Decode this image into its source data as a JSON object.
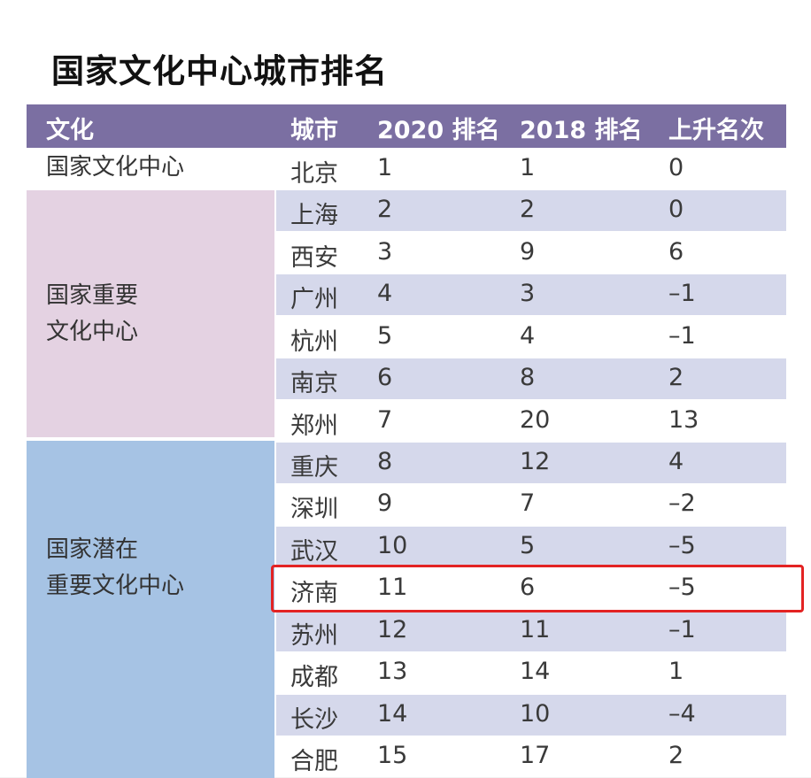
{
  "title": "国家文化中心城市排名",
  "headers": {
    "culture": "文化",
    "city": "城市",
    "rank2020": "2020 排名",
    "rank2018": "2018 排名",
    "rise": "上升名次"
  },
  "categories": [
    "国家文化中心",
    "国家重要\n文化中心",
    "国家潜在\n重要文化中心"
  ],
  "rows": [
    {
      "city": "北京",
      "rank2020": "1",
      "rank2018": "1",
      "rise": "0"
    },
    {
      "city": "上海",
      "rank2020": "2",
      "rank2018": "2",
      "rise": "0"
    },
    {
      "city": "西安",
      "rank2020": "3",
      "rank2018": "9",
      "rise": "6"
    },
    {
      "city": "广州",
      "rank2020": "4",
      "rank2018": "3",
      "rise": "–1"
    },
    {
      "city": "杭州",
      "rank2020": "5",
      "rank2018": "4",
      "rise": "–1"
    },
    {
      "city": "南京",
      "rank2020": "6",
      "rank2018": "8",
      "rise": "2"
    },
    {
      "city": "郑州",
      "rank2020": "7",
      "rank2018": "20",
      "rise": "13"
    },
    {
      "city": "重庆",
      "rank2020": "8",
      "rank2018": "12",
      "rise": "4"
    },
    {
      "city": "深圳",
      "rank2020": "9",
      "rank2018": "7",
      "rise": "–2"
    },
    {
      "city": "武汉",
      "rank2020": "10",
      "rank2018": "5",
      "rise": "–5"
    },
    {
      "city": "济南",
      "rank2020": "11",
      "rank2018": "6",
      "rise": "–5"
    },
    {
      "city": "苏州",
      "rank2020": "12",
      "rank2018": "11",
      "rise": "–1"
    },
    {
      "city": "成都",
      "rank2020": "13",
      "rank2018": "14",
      "rise": "1"
    },
    {
      "city": "长沙",
      "rank2020": "14",
      "rank2018": "10",
      "rise": "–4"
    },
    {
      "city": "合肥",
      "rank2020": "15",
      "rank2018": "17",
      "rise": "2"
    }
  ],
  "colors": {
    "header": "#7b6fa2",
    "row_stripe": "#d5d8eb",
    "important_block": "#e4d2e2",
    "potential_block": "#a6c3e4",
    "highlight_border": "#e32323"
  },
  "highlighted_city": "济南"
}
